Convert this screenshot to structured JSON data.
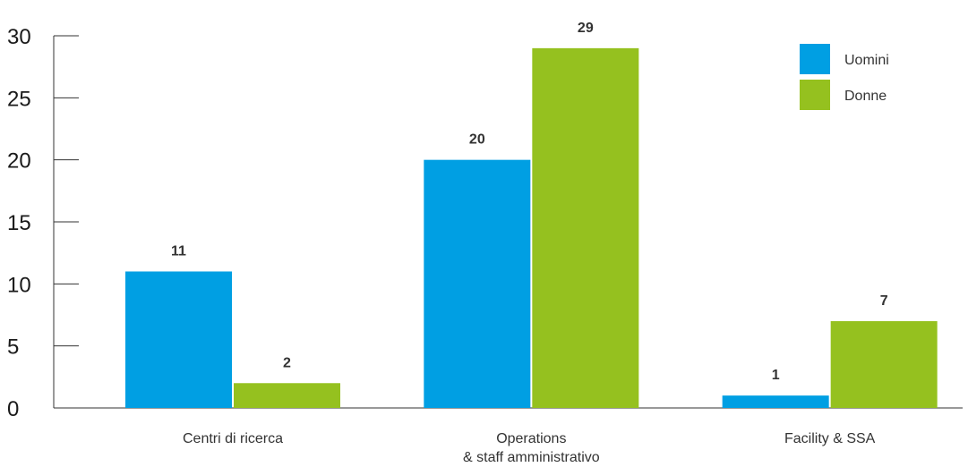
{
  "chart_data": {
    "type": "bar",
    "title": "",
    "xlabel": "",
    "ylabel": "",
    "categories": [
      [
        "Centri di ricerca"
      ],
      [
        "Operations",
        "& staff amministrativo"
      ],
      [
        "Facility & SSA"
      ]
    ],
    "series": [
      {
        "name": "Uomini",
        "color": "#009fe3",
        "values": [
          11,
          20,
          1
        ]
      },
      {
        "name": "Donne",
        "color": "#95c11f",
        "values": [
          2,
          29,
          7
        ]
      }
    ],
    "ylim": [
      0,
      30
    ],
    "yticks": [
      0,
      5,
      10,
      15,
      20,
      25,
      30
    ],
    "legend_position": "top-right",
    "grid": false
  }
}
